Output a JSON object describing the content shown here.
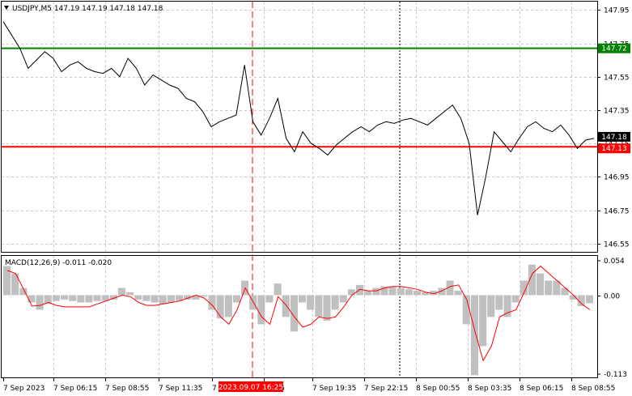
{
  "chart_data": [
    {
      "type": "line",
      "title": "USDJPY,M5  147.19 147.19 147.18 147.18",
      "symbol": "USDJPY,M5",
      "ohlc": [
        "147.19",
        "147.19",
        "147.18",
        "147.18"
      ],
      "ylim": [
        146.5,
        148.0
      ],
      "y_ticks": [
        "147.95",
        "147.75",
        "147.55",
        "147.35",
        "147.15",
        "146.95",
        "146.75",
        "146.55"
      ],
      "grid": true,
      "levels": [
        {
          "label": "147.72",
          "value": 147.72,
          "color": "#008000"
        },
        {
          "label": "147.13",
          "value": 147.13,
          "color": "#ff0000"
        }
      ],
      "price_marker": {
        "label": "147.18",
        "value": 147.18
      },
      "series": [
        {
          "color": "#000000",
          "values": [
            147.88,
            147.8,
            147.72,
            147.6,
            147.65,
            147.7,
            147.66,
            147.58,
            147.62,
            147.64,
            147.6,
            147.58,
            147.57,
            147.6,
            147.55,
            147.66,
            147.6,
            147.5,
            147.56,
            147.53,
            147.5,
            147.48,
            147.42,
            147.4,
            147.34,
            147.25,
            147.28,
            147.3,
            147.32,
            147.62,
            147.28,
            147.2,
            147.3,
            147.42,
            147.18,
            147.1,
            147.22,
            147.15,
            147.12,
            147.08,
            147.14,
            147.18,
            147.22,
            147.25,
            147.22,
            147.26,
            147.28,
            147.27,
            147.29,
            147.3,
            147.28,
            147.26,
            147.3,
            147.34,
            147.38,
            147.3,
            147.15,
            146.72,
            146.95,
            147.22,
            147.16,
            147.1,
            147.18,
            147.25,
            147.28,
            147.24,
            147.22,
            147.26,
            147.2,
            147.12,
            147.17,
            147.18
          ]
        }
      ]
    },
    {
      "type": "bar",
      "title": "MACD(12,26,9) -0.011 -0.020",
      "ylim": [
        -0.113,
        0.054
      ],
      "y_ticks": [
        "0.054",
        "0.00",
        "-0.113"
      ],
      "series": [
        {
          "name": "MACD",
          "color": "#c0c0c0",
          "values": [
            0.04,
            0.03,
            0.01,
            -0.01,
            -0.02,
            -0.012,
            -0.008,
            -0.006,
            -0.008,
            -0.01,
            -0.01,
            -0.008,
            -0.008,
            -0.006,
            0.01,
            0.004,
            -0.006,
            -0.008,
            -0.01,
            -0.012,
            -0.01,
            -0.008,
            -0.006,
            -0.006,
            -0.002,
            -0.02,
            -0.032,
            -0.03,
            -0.01,
            0.02,
            -0.02,
            -0.04,
            -0.01,
            0.016,
            -0.03,
            -0.05,
            -0.01,
            -0.02,
            -0.03,
            -0.035,
            -0.02,
            -0.01,
            0.008,
            0.014,
            0.006,
            0.01,
            0.012,
            0.012,
            0.01,
            0.008,
            0.006,
            0.004,
            0.006,
            0.01,
            0.02,
            0.006,
            -0.04,
            -0.11,
            -0.07,
            -0.03,
            -0.02,
            -0.03,
            -0.01,
            0.02,
            0.042,
            0.03,
            0.02,
            0.02,
            0.01,
            -0.006,
            -0.015,
            -0.011
          ]
        },
        {
          "name": "Signal",
          "color": "#ff0000",
          "values": [
            0.034,
            0.03,
            0.008,
            -0.015,
            -0.014,
            -0.01,
            -0.014,
            -0.016,
            -0.016,
            -0.016,
            -0.016,
            -0.012,
            -0.008,
            -0.004,
            0.0,
            -0.002,
            -0.01,
            -0.014,
            -0.014,
            -0.012,
            -0.01,
            -0.008,
            -0.004,
            0.0,
            -0.004,
            -0.014,
            -0.03,
            -0.04,
            -0.02,
            0.01,
            -0.01,
            -0.03,
            -0.04,
            -0.002,
            -0.014,
            -0.03,
            -0.044,
            -0.04,
            -0.03,
            -0.032,
            -0.03,
            -0.016,
            0.0,
            0.008,
            0.006,
            0.006,
            0.01,
            0.012,
            0.012,
            0.01,
            0.008,
            0.004,
            0.002,
            0.006,
            0.012,
            0.014,
            -0.006,
            -0.05,
            -0.09,
            -0.07,
            -0.03,
            -0.024,
            -0.02,
            0.004,
            0.03,
            0.04,
            0.03,
            0.02,
            0.01,
            0.0,
            -0.012,
            -0.02
          ]
        }
      ]
    }
  ],
  "x_ticks": [
    "7 Sep 2023",
    "7 Sep 06:15",
    "7 Sep 08:55",
    "7 Sep 11:35",
    "7 S",
    "16:55",
    "7 Sep 19:35",
    "7 Sep 22:15",
    "8 Sep 00:55",
    "8 Sep 03:35",
    "8 Sep 06:15",
    "8 Sep 08:55"
  ],
  "crosshair_label": "2023.09.07 16:25",
  "colors": {
    "grid": "#c8c8c8",
    "level_green": "#008000",
    "level_red": "#ff0000",
    "histogram": "#c0c0c0",
    "signal": "#ff0000"
  }
}
